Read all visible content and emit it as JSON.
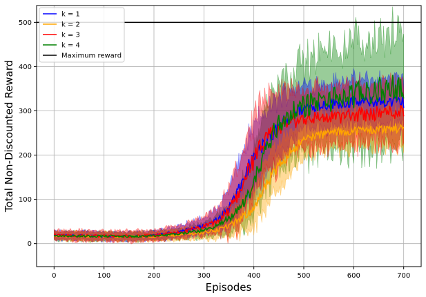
{
  "chart_data": {
    "type": "line",
    "title": "",
    "xlabel": "Episodes",
    "ylabel": "Total Non-Discounted Reward",
    "xlim": [
      -35,
      735
    ],
    "ylim": [
      -52,
      538
    ],
    "xticks": [
      0,
      100,
      200,
      300,
      400,
      500,
      600,
      700
    ],
    "yticks": [
      0,
      100,
      200,
      300,
      400,
      500
    ],
    "grid": true,
    "legend_position": "top-left",
    "series": [
      {
        "name": "k = 1",
        "color": "#0000ff",
        "x": [
          0,
          50,
          100,
          150,
          200,
          250,
          300,
          330,
          350,
          370,
          390,
          410,
          430,
          450,
          470,
          490,
          510,
          550,
          600,
          650,
          700
        ],
        "mean": [
          18,
          18,
          17,
          16,
          18,
          27,
          40,
          55,
          80,
          120,
          175,
          210,
          235,
          265,
          285,
          300,
          310,
          315,
          320,
          320,
          320
        ],
        "spread": [
          10,
          10,
          10,
          10,
          10,
          14,
          18,
          28,
          45,
          60,
          65,
          70,
          70,
          65,
          60,
          55,
          50,
          50,
          50,
          50,
          55
        ]
      },
      {
        "name": "k = 2",
        "color": "#ffa500",
        "x": [
          0,
          50,
          100,
          150,
          200,
          250,
          300,
          330,
          360,
          390,
          410,
          430,
          450,
          470,
          490,
          510,
          550,
          600,
          650,
          700
        ],
        "mean": [
          17,
          17,
          16,
          16,
          16,
          20,
          25,
          32,
          45,
          70,
          100,
          140,
          175,
          205,
          225,
          240,
          250,
          255,
          258,
          262
        ],
        "spread": [
          10,
          10,
          10,
          10,
          10,
          12,
          15,
          20,
          30,
          40,
          50,
          55,
          55,
          50,
          45,
          40,
          40,
          40,
          40,
          45
        ]
      },
      {
        "name": "k = 3",
        "color": "#ff0000",
        "x": [
          0,
          50,
          100,
          150,
          200,
          250,
          300,
          330,
          350,
          370,
          390,
          410,
          430,
          450,
          470,
          490,
          510,
          550,
          600,
          650,
          700
        ],
        "mean": [
          20,
          18,
          17,
          17,
          18,
          25,
          38,
          52,
          75,
          115,
          170,
          210,
          240,
          260,
          275,
          280,
          285,
          285,
          290,
          295,
          300
        ],
        "spread": [
          10,
          12,
          12,
          12,
          12,
          15,
          20,
          30,
          50,
          70,
          80,
          90,
          85,
          80,
          75,
          70,
          65,
          65,
          65,
          65,
          70
        ]
      },
      {
        "name": "k = 4",
        "color": "#008000",
        "x": [
          0,
          50,
          100,
          150,
          200,
          250,
          300,
          330,
          360,
          390,
          410,
          430,
          450,
          470,
          490,
          510,
          550,
          600,
          650,
          700
        ],
        "mean": [
          18,
          17,
          17,
          16,
          17,
          22,
          30,
          42,
          65,
          110,
          170,
          230,
          270,
          290,
          305,
          315,
          325,
          335,
          345,
          355
        ],
        "spread": [
          10,
          10,
          10,
          10,
          10,
          12,
          16,
          24,
          40,
          60,
          80,
          100,
          105,
          100,
          100,
          105,
          110,
          120,
          125,
          120
        ]
      },
      {
        "name": "Maximum reward",
        "color": "#000000",
        "x": [
          -35,
          735
        ],
        "mean": [
          500,
          500
        ],
        "spread": [
          0,
          0
        ]
      }
    ]
  }
}
